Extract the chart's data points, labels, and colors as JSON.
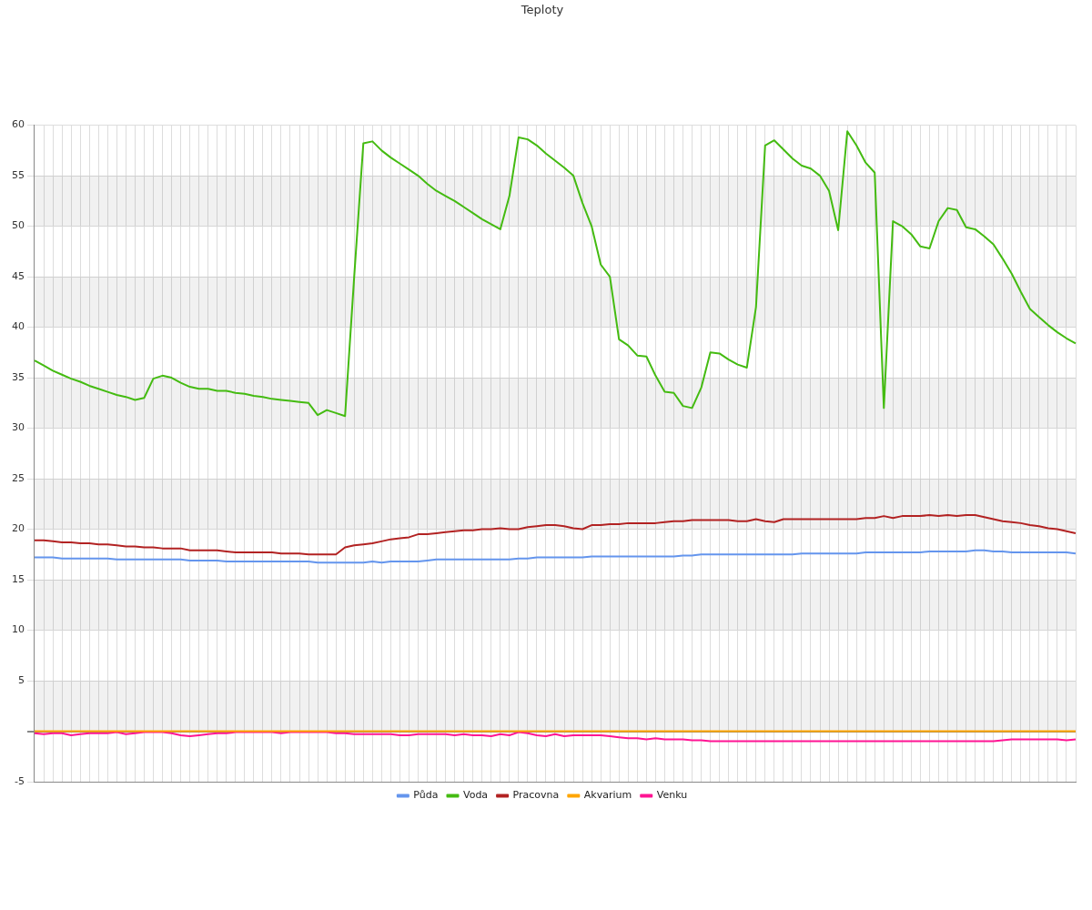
{
  "chart_data": {
    "type": "line",
    "title": "Teploty",
    "categories": [
      null,
      null,
      null,
      null,
      null,
      null,
      null,
      null,
      null,
      null,
      null,
      null,
      null,
      null,
      null,
      null,
      null,
      null,
      null,
      null,
      null,
      null,
      null,
      null,
      null,
      null,
      null,
      null,
      null,
      null,
      null,
      null,
      null,
      null,
      null,
      null,
      null,
      null,
      null,
      null,
      null,
      null,
      null,
      null,
      null,
      null,
      null,
      null,
      null,
      null,
      null,
      null,
      null,
      null,
      null,
      null,
      null,
      null,
      null,
      null,
      null,
      null,
      null,
      null,
      null,
      null,
      null,
      null,
      null,
      null,
      null,
      null,
      null,
      null,
      null,
      null,
      null,
      null,
      null,
      null,
      null,
      null,
      null,
      null,
      null,
      null,
      null,
      null,
      null,
      null,
      null,
      null,
      null,
      null,
      null,
      null,
      null,
      null,
      null,
      null,
      null,
      null,
      null,
      null,
      null,
      null,
      null,
      null,
      null,
      null,
      null,
      null,
      null,
      null,
      null
    ],
    "series": [
      {
        "name": "Půda",
        "color": "#6495ed",
        "values": [
          17.2,
          17.2,
          17.2,
          17.1,
          17.1,
          17.1,
          17.1,
          17.1,
          17.1,
          17.0,
          17.0,
          17.0,
          17.0,
          17.0,
          17.0,
          17.0,
          17.0,
          16.9,
          16.9,
          16.9,
          16.9,
          16.8,
          16.8,
          16.8,
          16.8,
          16.8,
          16.8,
          16.8,
          16.8,
          16.8,
          16.8,
          16.7,
          16.7,
          16.7,
          16.7,
          16.7,
          16.7,
          16.8,
          16.7,
          16.8,
          16.8,
          16.8,
          16.8,
          16.9,
          17.0,
          17.0,
          17.0,
          17.0,
          17.0,
          17.0,
          17.0,
          17.0,
          17.0,
          17.1,
          17.1,
          17.2,
          17.2,
          17.2,
          17.2,
          17.2,
          17.2,
          17.3,
          17.3,
          17.3,
          17.3,
          17.3,
          17.3,
          17.3,
          17.3,
          17.3,
          17.3,
          17.4,
          17.4,
          17.5,
          17.5,
          17.5,
          17.5,
          17.5,
          17.5,
          17.5,
          17.5,
          17.5,
          17.5,
          17.5,
          17.6,
          17.6,
          17.6,
          17.6,
          17.6,
          17.6,
          17.6,
          17.7,
          17.7,
          17.7,
          17.7,
          17.7,
          17.7,
          17.7,
          17.8,
          17.8,
          17.8,
          17.8,
          17.8,
          17.9,
          17.9,
          17.8,
          17.8,
          17.7,
          17.7,
          17.7,
          17.7,
          17.7,
          17.7,
          17.7,
          17.6
        ]
      },
      {
        "name": "Voda",
        "color": "#44bb11",
        "values": [
          36.7,
          36.2,
          35.7,
          35.3,
          34.9,
          34.6,
          34.2,
          33.9,
          33.6,
          33.3,
          33.1,
          32.8,
          33.0,
          34.9,
          35.2,
          35.0,
          34.5,
          34.1,
          33.9,
          33.9,
          33.7,
          33.7,
          33.5,
          33.4,
          33.2,
          33.1,
          32.9,
          32.8,
          32.7,
          32.6,
          32.5,
          31.3,
          31.8,
          31.5,
          31.2,
          45.0,
          58.2,
          58.4,
          57.5,
          56.8,
          56.2,
          55.6,
          55.0,
          54.2,
          53.5,
          53.0,
          52.5,
          51.9,
          51.3,
          50.7,
          50.2,
          49.7,
          53.0,
          58.8,
          58.6,
          58.0,
          57.2,
          56.5,
          55.8,
          55.0,
          52.3,
          50.0,
          46.2,
          45.0,
          38.8,
          38.2,
          37.2,
          37.1,
          35.2,
          33.6,
          33.5,
          32.2,
          32.0,
          34.0,
          37.5,
          37.4,
          36.8,
          36.3,
          36.0,
          42.0,
          58.0,
          58.5,
          57.6,
          56.7,
          56.0,
          55.7,
          55.0,
          53.5,
          49.6,
          59.4,
          58.0,
          56.3,
          55.3,
          32.0,
          50.5,
          50.0,
          49.2,
          48.0,
          47.8,
          50.5,
          51.8,
          51.6,
          49.9,
          49.7,
          49.0,
          48.2,
          46.8,
          45.3,
          43.5,
          41.8,
          41.0,
          40.2,
          39.5,
          38.9,
          38.4
        ]
      },
      {
        "name": "Pracovna",
        "color": "#b22222",
        "values": [
          18.9,
          18.9,
          18.8,
          18.7,
          18.7,
          18.6,
          18.6,
          18.5,
          18.5,
          18.4,
          18.3,
          18.3,
          18.2,
          18.2,
          18.1,
          18.1,
          18.1,
          17.9,
          17.9,
          17.9,
          17.9,
          17.8,
          17.7,
          17.7,
          17.7,
          17.7,
          17.7,
          17.6,
          17.6,
          17.6,
          17.5,
          17.5,
          17.5,
          17.5,
          18.2,
          18.4,
          18.5,
          18.6,
          18.8,
          19.0,
          19.1,
          19.2,
          19.5,
          19.5,
          19.6,
          19.7,
          19.8,
          19.9,
          19.9,
          20.0,
          20.0,
          20.1,
          20.0,
          20.0,
          20.2,
          20.3,
          20.4,
          20.4,
          20.3,
          20.1,
          20.0,
          20.4,
          20.4,
          20.5,
          20.5,
          20.6,
          20.6,
          20.6,
          20.6,
          20.7,
          20.8,
          20.8,
          20.9,
          20.9,
          20.9,
          20.9,
          20.9,
          20.8,
          20.8,
          21.0,
          20.8,
          20.7,
          21.0,
          21.0,
          21.0,
          21.0,
          21.0,
          21.0,
          21.0,
          21.0,
          21.0,
          21.1,
          21.1,
          21.3,
          21.1,
          21.3,
          21.3,
          21.3,
          21.4,
          21.3,
          21.4,
          21.3,
          21.4,
          21.4,
          21.2,
          21.0,
          20.8,
          20.7,
          20.6,
          20.4,
          20.3,
          20.1,
          20.0,
          19.8,
          19.6
        ]
      },
      {
        "name": "Akvarium",
        "color": "#ffa500",
        "values": [
          0,
          0,
          0,
          0,
          0,
          0,
          0,
          0,
          0,
          0,
          0,
          0,
          0,
          0,
          0,
          0,
          0,
          0,
          0,
          0,
          0,
          0,
          0,
          0,
          0,
          0,
          0,
          0,
          0,
          0,
          0,
          0,
          0,
          0,
          0,
          0,
          0,
          0,
          0,
          0,
          0,
          0,
          0,
          0,
          0,
          0,
          0,
          0,
          0,
          0,
          0,
          0,
          0,
          0,
          0,
          0,
          0,
          0,
          0,
          0,
          0,
          0,
          0,
          0,
          0,
          0,
          0,
          0,
          0,
          0,
          0,
          0,
          0,
          0,
          0,
          0,
          0,
          0,
          0,
          0,
          0,
          0,
          0,
          0,
          0,
          0,
          0,
          0,
          0,
          0,
          0,
          0,
          0,
          0,
          0,
          0,
          0,
          0,
          0,
          0,
          0,
          0,
          0,
          0,
          0,
          0,
          0,
          0,
          0,
          0,
          0,
          0,
          0,
          0,
          0
        ]
      },
      {
        "name": "Venku",
        "color": "#ff1493",
        "values": [
          -0.2,
          -0.3,
          -0.2,
          -0.2,
          -0.4,
          -0.3,
          -0.2,
          -0.2,
          -0.2,
          -0.1,
          -0.3,
          -0.2,
          -0.1,
          -0.1,
          -0.1,
          -0.2,
          -0.4,
          -0.5,
          -0.4,
          -0.3,
          -0.2,
          -0.2,
          -0.1,
          -0.1,
          -0.1,
          -0.1,
          -0.1,
          -0.2,
          -0.1,
          -0.1,
          -0.1,
          -0.1,
          -0.1,
          -0.2,
          -0.2,
          -0.3,
          -0.3,
          -0.3,
          -0.3,
          -0.3,
          -0.4,
          -0.4,
          -0.3,
          -0.3,
          -0.3,
          -0.3,
          -0.4,
          -0.3,
          -0.4,
          -0.4,
          -0.5,
          -0.3,
          -0.4,
          -0.1,
          -0.2,
          -0.4,
          -0.5,
          -0.3,
          -0.5,
          -0.4,
          -0.4,
          -0.4,
          -0.4,
          -0.5,
          -0.6,
          -0.7,
          -0.7,
          -0.8,
          -0.7,
          -0.8,
          -0.8,
          -0.8,
          -0.9,
          -0.9,
          -1.0,
          -1.0,
          -1.0,
          -1.0,
          -1.0,
          -1.0,
          -1.0,
          -1.0,
          -1.0,
          -1.0,
          -1.0,
          -1.0,
          -1.0,
          -1.0,
          -1.0,
          -1.0,
          -1.0,
          -1.0,
          -1.0,
          -1.0,
          -1.0,
          -1.0,
          -1.0,
          -1.0,
          -1.0,
          -1.0,
          -1.0,
          -1.0,
          -1.0,
          -1.0,
          -1.0,
          -1.0,
          -0.9,
          -0.8,
          -0.8,
          -0.8,
          -0.8,
          -0.8,
          -0.8,
          -0.9,
          -0.8
        ]
      }
    ],
    "ylim": [
      -5,
      60
    ],
    "yticks": [
      -5,
      {
        "value": 0,
        "label": null
      },
      5,
      10,
      15,
      20,
      25,
      30,
      35,
      40,
      45,
      50,
      55,
      60
    ],
    "grid": true,
    "legend": "bottom",
    "tick_labels": "y",
    "marker": "none",
    "line_style": "solid"
  }
}
